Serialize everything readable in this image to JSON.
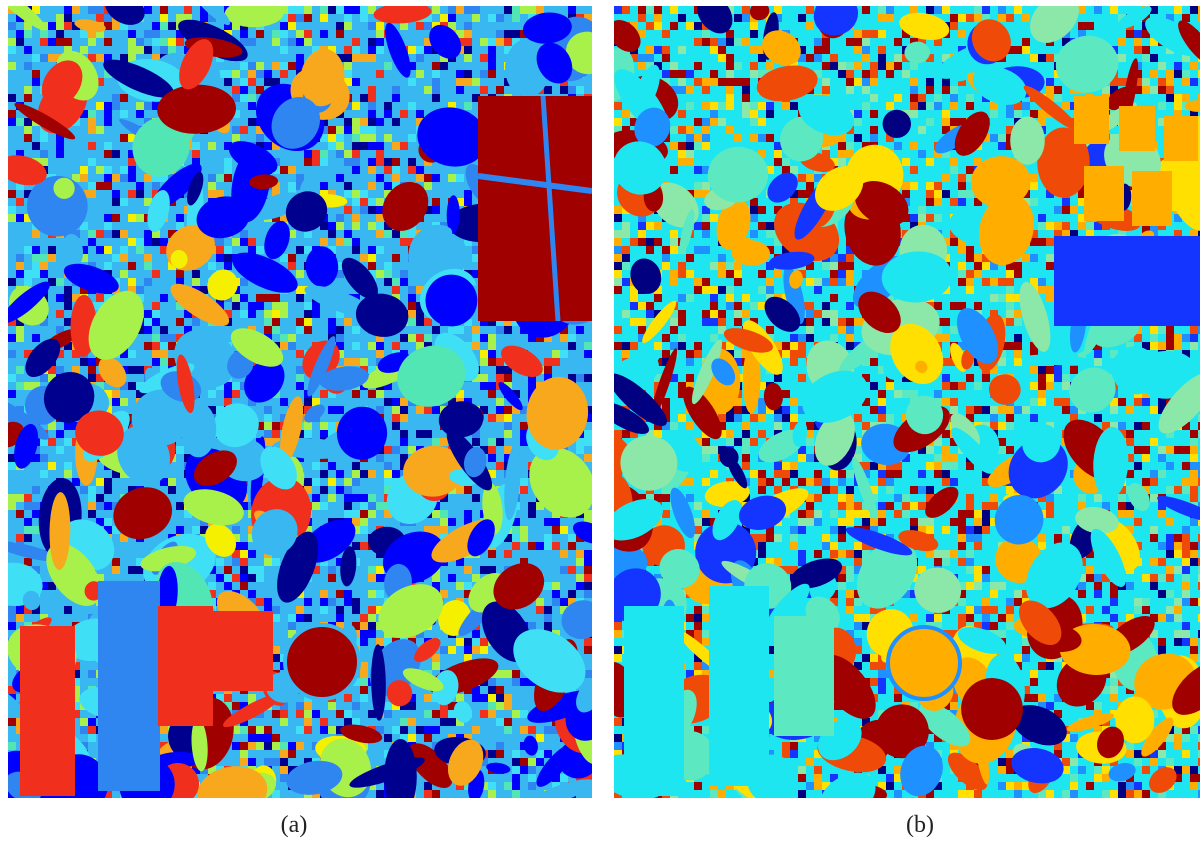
{
  "figure": {
    "panels": [
      {
        "caption": "(a)",
        "classes": [
          {
            "name": "dark-blue",
            "color": "#00008f"
          },
          {
            "name": "blue",
            "color": "#0000ff"
          },
          {
            "name": "azure",
            "color": "#2f86f0"
          },
          {
            "name": "sky",
            "color": "#39b7f0"
          },
          {
            "name": "cyan",
            "color": "#3fe0f5"
          },
          {
            "name": "aqua-green",
            "color": "#52e6b4"
          },
          {
            "name": "lime",
            "color": "#a8f04a"
          },
          {
            "name": "yellow",
            "color": "#f4f000"
          },
          {
            "name": "orange",
            "color": "#f7a81c"
          },
          {
            "name": "red",
            "color": "#f0301c"
          },
          {
            "name": "dark-red",
            "color": "#a00000"
          }
        ]
      },
      {
        "caption": "(b)",
        "classes": [
          {
            "name": "dark-blue",
            "color": "#000080"
          },
          {
            "name": "blue",
            "color": "#1434ff"
          },
          {
            "name": "azure",
            "color": "#1e90ff"
          },
          {
            "name": "cyan",
            "color": "#1ee6f0"
          },
          {
            "name": "aqua-green",
            "color": "#5ce8c0"
          },
          {
            "name": "pale-green",
            "color": "#8ce8a8"
          },
          {
            "name": "yellow",
            "color": "#ffe000"
          },
          {
            "name": "orange",
            "color": "#ffae00"
          },
          {
            "name": "red-orange",
            "color": "#f04a08"
          },
          {
            "name": "dark-red",
            "color": "#a00000"
          }
        ]
      }
    ]
  }
}
